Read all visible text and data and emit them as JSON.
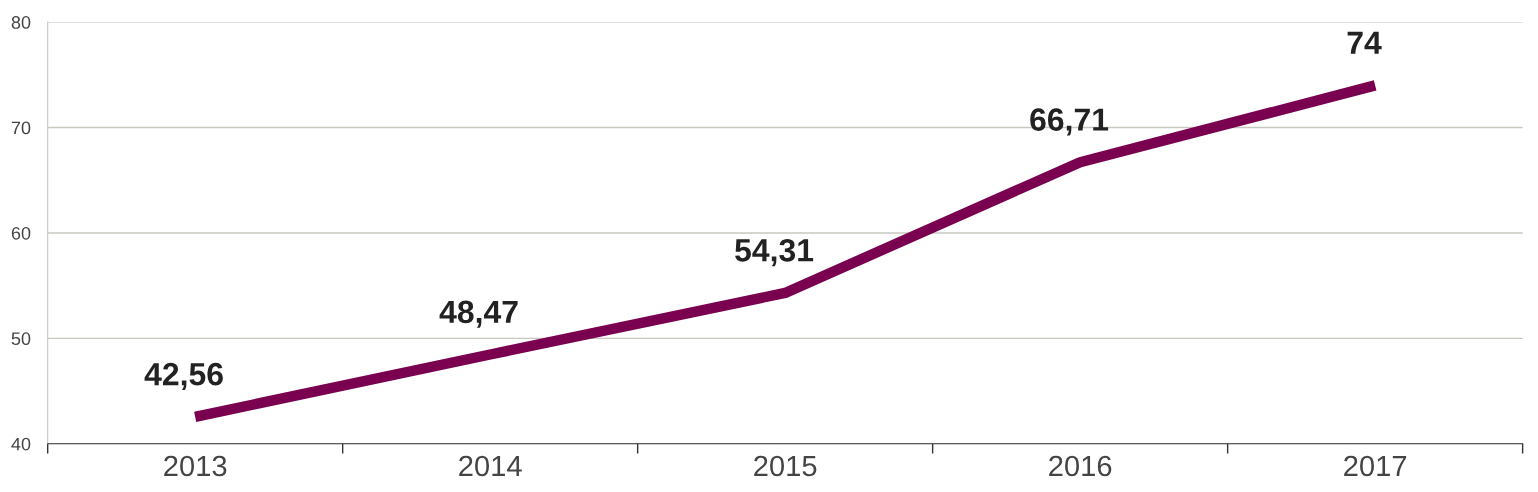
{
  "chart_data": {
    "type": "line",
    "categories": [
      "2013",
      "2014",
      "2015",
      "2016",
      "2017"
    ],
    "series": [
      {
        "color": "#7a0050",
        "values": [
          42.56,
          48.47,
          54.31,
          66.71,
          74
        ],
        "value_labels": [
          "42,56",
          "48,47",
          "54,31",
          "66,71",
          "74"
        ]
      }
    ],
    "ylim": [
      40,
      80
    ],
    "yticks": [
      40,
      50,
      60,
      70,
      80
    ],
    "grid": "y",
    "legend": false,
    "marker": "none",
    "line_style": "solid"
  }
}
